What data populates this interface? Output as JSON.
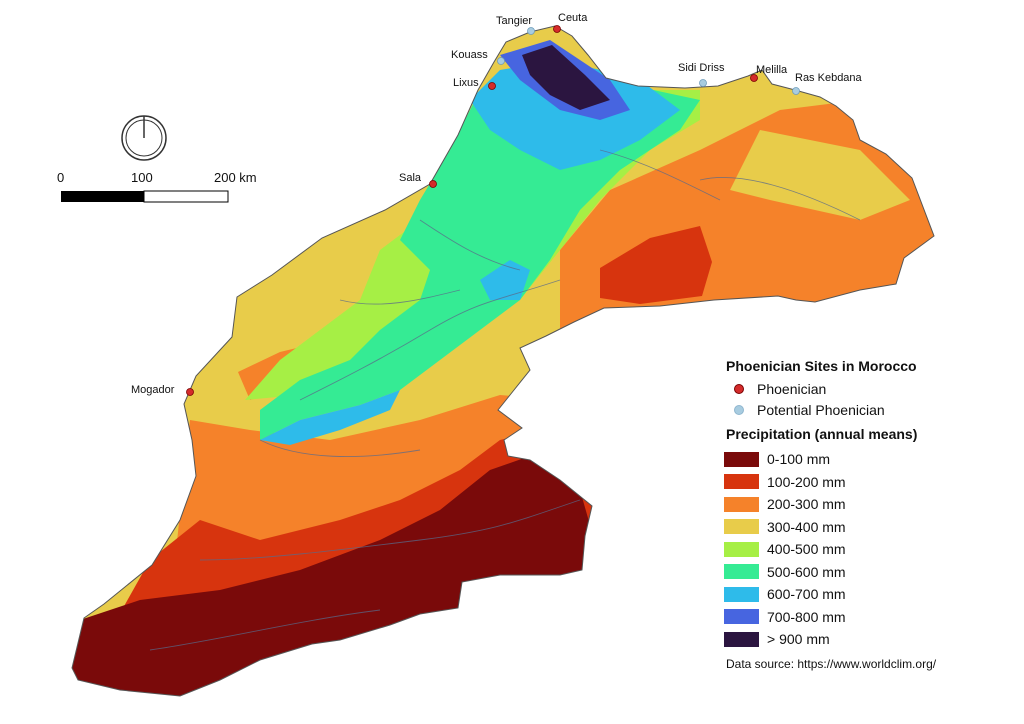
{
  "scale_bar": {
    "labels": [
      "0",
      "100",
      "200 km"
    ]
  },
  "sites": [
    {
      "name": "Tangier",
      "type": "potential"
    },
    {
      "name": "Ceuta",
      "type": "phoenician"
    },
    {
      "name": "Kouass",
      "type": "potential"
    },
    {
      "name": "Lixus",
      "type": "phoenician"
    },
    {
      "name": "Sidi Driss",
      "type": "potential"
    },
    {
      "name": "Melilla",
      "type": "phoenician"
    },
    {
      "name": "Ras Kebdana",
      "type": "potential"
    },
    {
      "name": "Sala",
      "type": "phoenician"
    },
    {
      "name": "Mogador",
      "type": "phoenician"
    }
  ],
  "legend": {
    "sites_title": "Phoenician Sites in Morocco",
    "site_types": [
      {
        "label": "Phoenician",
        "color": "#d42b2b"
      },
      {
        "label": "Potential Phoenician",
        "color": "#a8cce0"
      }
    ],
    "precip_title": "Precipitation (annual means)",
    "classes": [
      {
        "label": "0-100 mm",
        "color": "#7a0a0a"
      },
      {
        "label": "100-200 mm",
        "color": "#d7340e"
      },
      {
        "label": "200-300 mm",
        "color": "#f5822a"
      },
      {
        "label": "300-400 mm",
        "color": "#e8cc4a"
      },
      {
        "label": "400-500 mm",
        "color": "#a6ef45"
      },
      {
        "label": "500-600 mm",
        "color": "#35eb94"
      },
      {
        "label": "600-700 mm",
        "color": "#2ebbea"
      },
      {
        "label": "700-800 mm",
        "color": "#4765e0"
      },
      {
        "label": "> 900 mm",
        "color": "#2b1540"
      }
    ],
    "source": "Data source: https://www.worldclim.org/"
  }
}
